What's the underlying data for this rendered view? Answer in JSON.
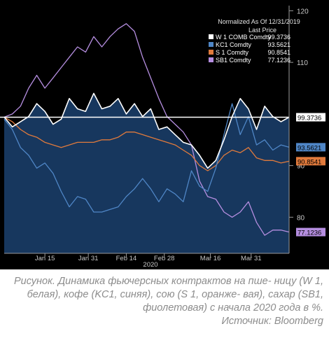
{
  "chart_data": {
    "type": "area",
    "legend": {
      "title": "Normalized As Of 12/31/2019",
      "subtitle": "Last Price",
      "placement": "top-right"
    },
    "x_tick_labels": [
      "Jan 15",
      "Jan 31",
      "Feb 14",
      "Feb 28",
      "Mar 16",
      "Mar 31"
    ],
    "x_year_label": "2020",
    "y_tick_labels": [
      "120",
      "110",
      "90",
      "80"
    ],
    "ylim": [
      73,
      121
    ],
    "x_range": [
      "2019-12-31",
      "2020-04-14"
    ],
    "grid": false,
    "series": [
      {
        "name": "W 1 COMB Comdty",
        "last": "99.3736",
        "color": "#ffffff",
        "fill": "#17375e",
        "x": [
          "2019-12-31",
          "2020-01-03",
          "2020-01-06",
          "2020-01-09",
          "2020-01-12",
          "2020-01-15",
          "2020-01-18",
          "2020-01-21",
          "2020-01-24",
          "2020-01-27",
          "2020-01-30",
          "2020-02-02",
          "2020-02-05",
          "2020-02-08",
          "2020-02-11",
          "2020-02-14",
          "2020-02-17",
          "2020-02-20",
          "2020-02-23",
          "2020-02-26",
          "2020-02-29",
          "2020-03-03",
          "2020-03-06",
          "2020-03-09",
          "2020-03-12",
          "2020-03-15",
          "2020-03-18",
          "2020-03-21",
          "2020-03-24",
          "2020-03-27",
          "2020-03-30",
          "2020-04-02",
          "2020-04-05",
          "2020-04-08",
          "2020-04-11",
          "2020-04-14"
        ],
        "values": [
          99.4,
          97.5,
          98.5,
          99.5,
          102,
          100.5,
          98,
          99,
          103,
          101,
          100.5,
          104,
          101,
          101.5,
          103,
          100,
          102,
          99.5,
          101,
          97,
          97.5,
          96,
          94.5,
          94,
          92,
          89.5,
          91,
          95,
          99.5,
          103,
          101,
          97,
          101.5,
          99.5,
          98.5,
          99.37
        ]
      },
      {
        "name": "KC1 Comdty",
        "last": "93.5621",
        "color": "#4f86c6",
        "x": [
          "2019-12-31",
          "2020-01-03",
          "2020-01-06",
          "2020-01-09",
          "2020-01-12",
          "2020-01-15",
          "2020-01-18",
          "2020-01-21",
          "2020-01-24",
          "2020-01-27",
          "2020-01-30",
          "2020-02-02",
          "2020-02-05",
          "2020-02-08",
          "2020-02-11",
          "2020-02-14",
          "2020-02-17",
          "2020-02-20",
          "2020-02-23",
          "2020-02-26",
          "2020-02-29",
          "2020-03-03",
          "2020-03-06",
          "2020-03-09",
          "2020-03-12",
          "2020-03-15",
          "2020-03-18",
          "2020-03-21",
          "2020-03-24",
          "2020-03-27",
          "2020-03-30",
          "2020-04-02",
          "2020-04-05",
          "2020-04-08",
          "2020-04-11",
          "2020-04-14"
        ],
        "values": [
          99,
          97,
          93.5,
          92,
          89.5,
          90.5,
          88.5,
          85,
          82,
          84,
          83.5,
          81,
          81,
          81.5,
          82,
          84,
          85.5,
          87.5,
          85.5,
          83,
          85.5,
          84.5,
          83,
          89,
          86,
          85,
          89.5,
          96,
          102,
          96,
          99.5,
          94,
          95,
          93,
          94,
          93.56
        ]
      },
      {
        "name": "S 1 Comdty",
        "last": "90.8541",
        "color": "#e07a3c",
        "x": [
          "2019-12-31",
          "2020-01-03",
          "2020-01-06",
          "2020-01-09",
          "2020-01-12",
          "2020-01-15",
          "2020-01-18",
          "2020-01-21",
          "2020-01-24",
          "2020-01-27",
          "2020-01-30",
          "2020-02-02",
          "2020-02-05",
          "2020-02-08",
          "2020-02-11",
          "2020-02-14",
          "2020-02-17",
          "2020-02-20",
          "2020-02-23",
          "2020-02-26",
          "2020-02-29",
          "2020-03-03",
          "2020-03-06",
          "2020-03-09",
          "2020-03-12",
          "2020-03-15",
          "2020-03-18",
          "2020-03-21",
          "2020-03-24",
          "2020-03-27",
          "2020-03-30",
          "2020-04-02",
          "2020-04-05",
          "2020-04-08",
          "2020-04-11",
          "2020-04-14"
        ],
        "values": [
          99.4,
          98.5,
          97,
          96,
          95.5,
          94.5,
          94,
          93.5,
          94,
          94.5,
          94.5,
          94.5,
          95,
          95,
          95.5,
          96.5,
          96.5,
          96,
          95.5,
          95,
          94.5,
          94,
          93,
          92,
          90,
          89,
          90,
          92,
          93,
          92.5,
          93.5,
          91.5,
          91,
          91,
          90.5,
          90.85
        ]
      },
      {
        "name": "SB1 Comdty",
        "last": "77.1236",
        "color": "#b58ee0",
        "x": [
          "2019-12-31",
          "2020-01-03",
          "2020-01-06",
          "2020-01-09",
          "2020-01-12",
          "2020-01-15",
          "2020-01-18",
          "2020-01-21",
          "2020-01-24",
          "2020-01-27",
          "2020-01-30",
          "2020-02-02",
          "2020-02-05",
          "2020-02-08",
          "2020-02-11",
          "2020-02-14",
          "2020-02-17",
          "2020-02-20",
          "2020-02-23",
          "2020-02-26",
          "2020-02-29",
          "2020-03-03",
          "2020-03-06",
          "2020-03-09",
          "2020-03-12",
          "2020-03-15",
          "2020-03-18",
          "2020-03-21",
          "2020-03-24",
          "2020-03-27",
          "2020-03-30",
          "2020-04-02",
          "2020-04-05",
          "2020-04-08",
          "2020-04-11",
          "2020-04-14"
        ],
        "values": [
          99.4,
          100,
          101.5,
          105,
          107.5,
          105,
          107,
          109,
          111,
          113,
          112,
          115,
          113,
          115,
          116.5,
          117.5,
          116,
          111,
          107,
          103,
          99.5,
          98,
          96.5,
          94,
          87,
          84,
          83.5,
          81,
          80,
          81,
          83,
          79,
          76.5,
          77.5,
          77.5,
          77.12
        ]
      }
    ]
  },
  "caption": {
    "line1": "Рисунок. Динамика фьючерсных контрактов на пше-",
    "line2": "ницу (W 1, белая), кофе (KC1, синяя), сою (S 1, оранже-",
    "line3": "вая), сахар (SB1, фиолетовая) с начала 2020 года в %.",
    "line4": "Источник: Bloomberg"
  }
}
